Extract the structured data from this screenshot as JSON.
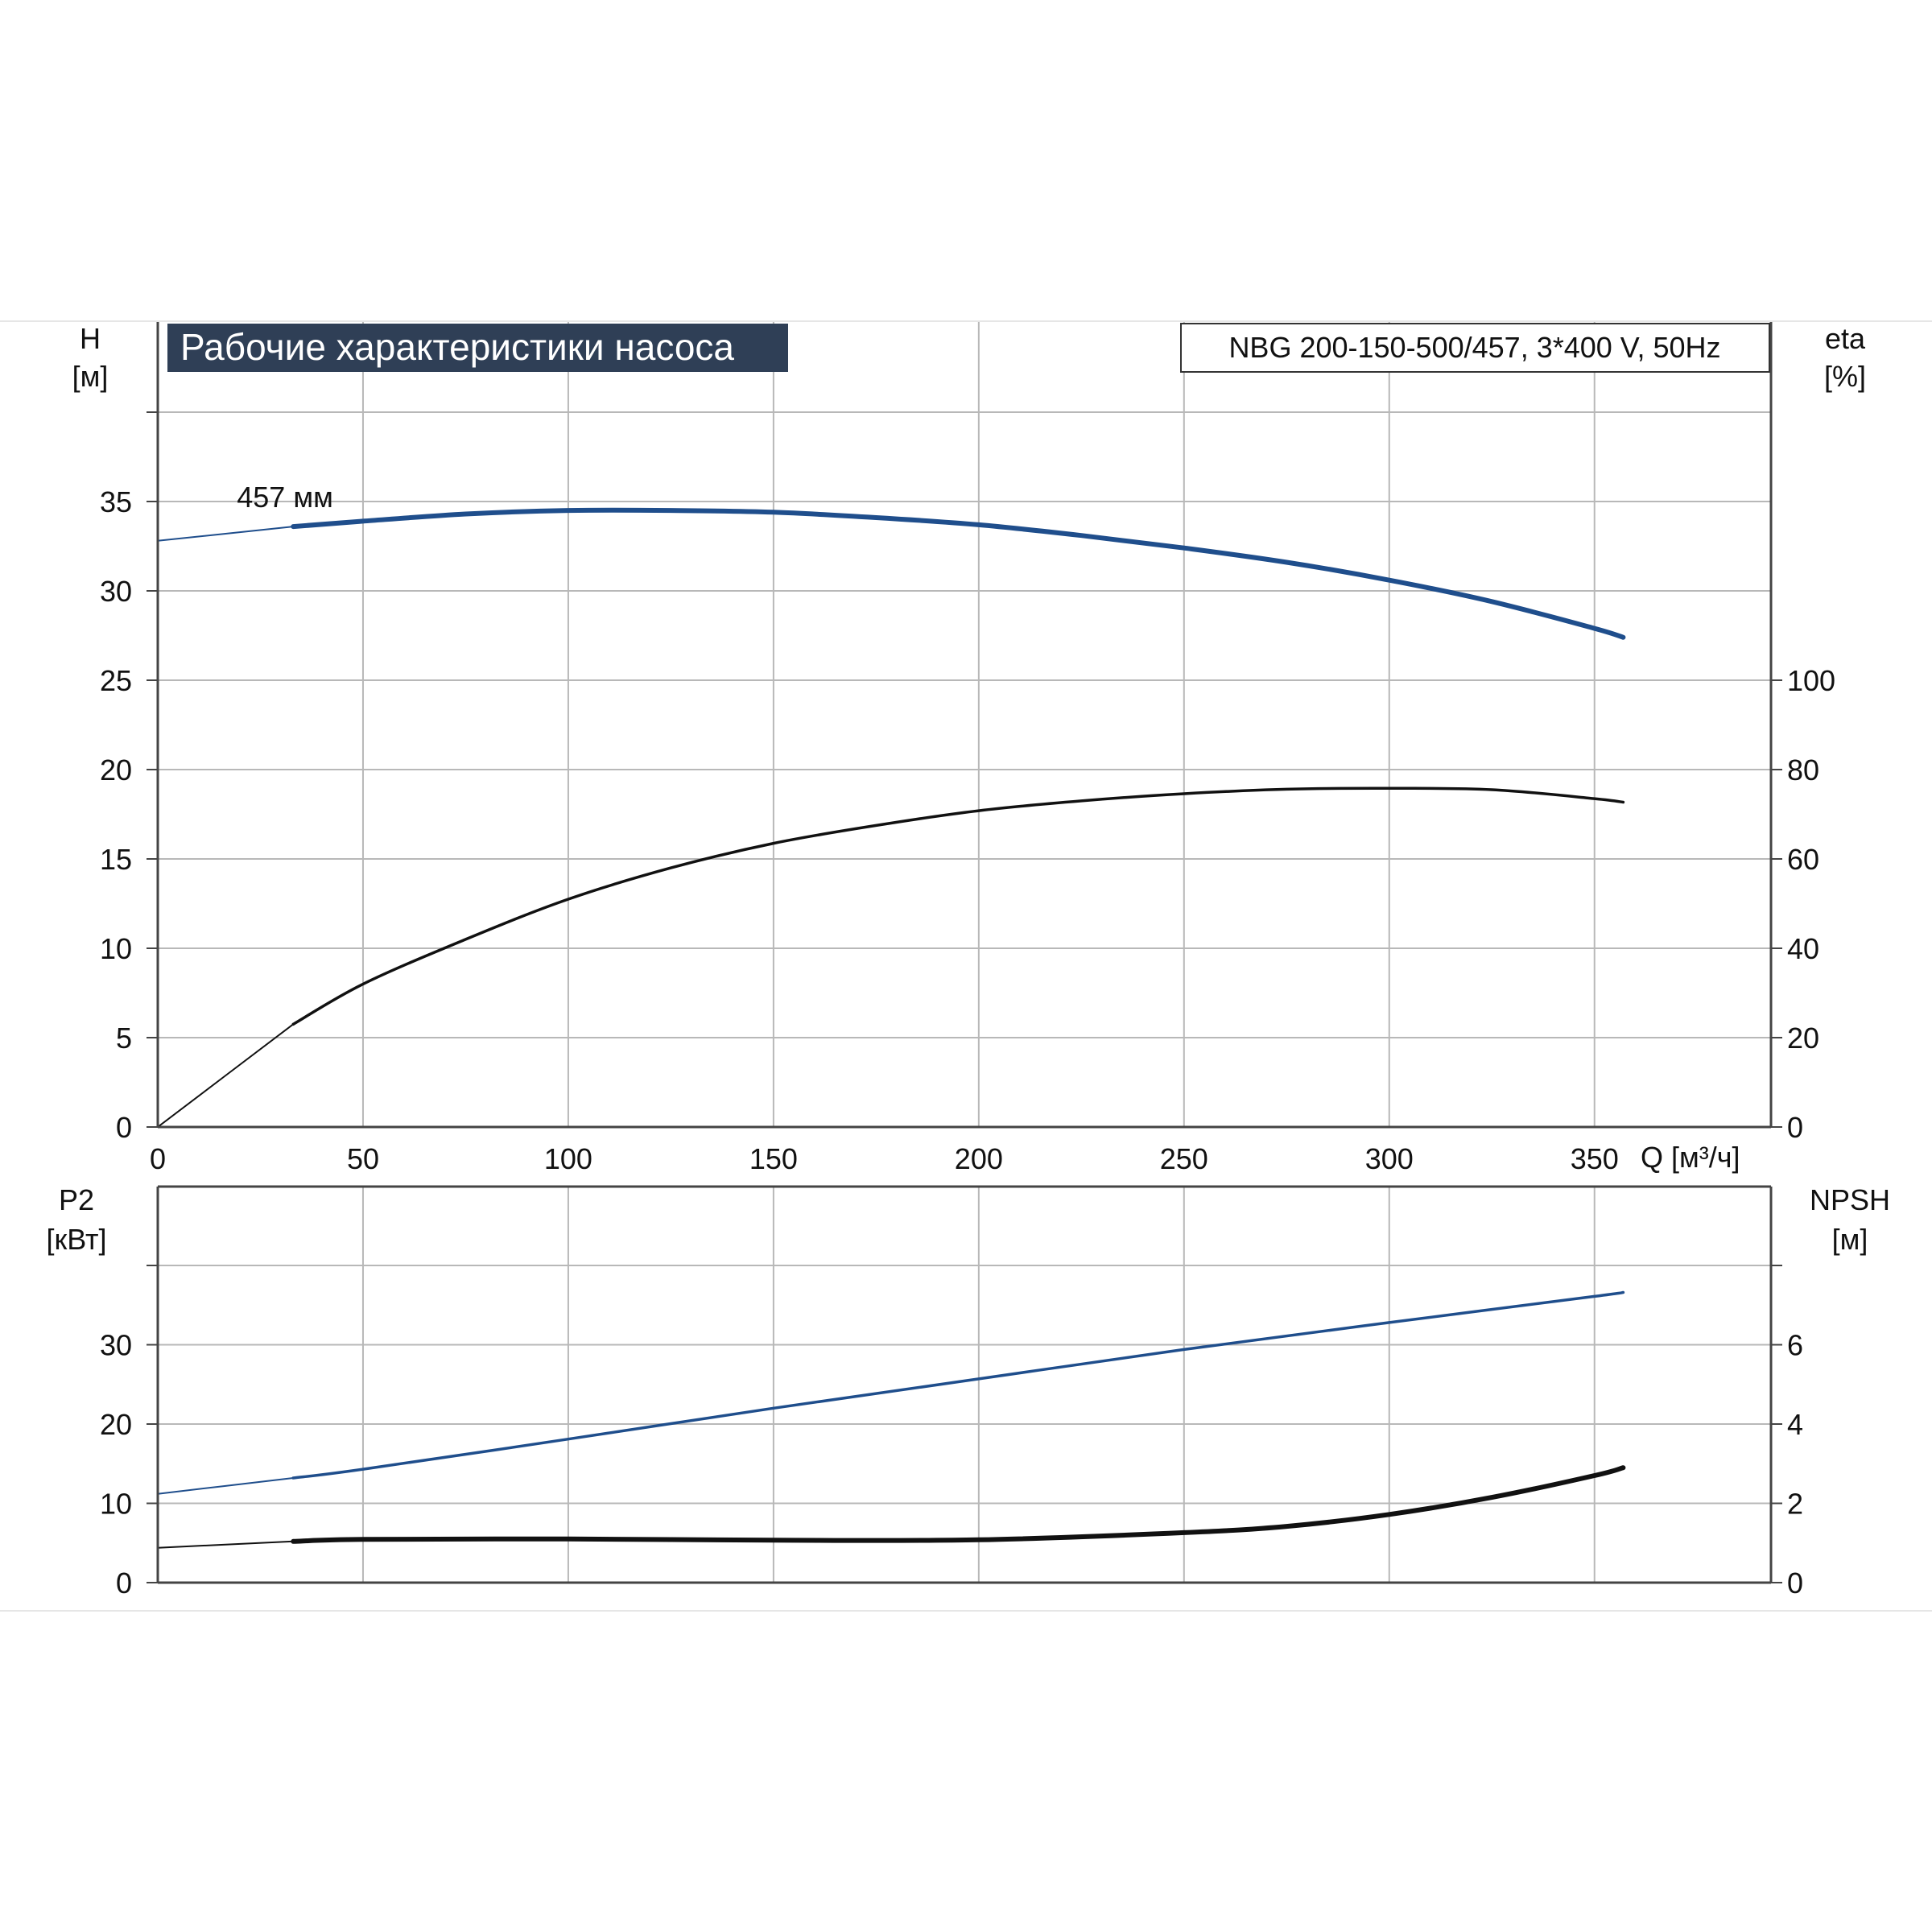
{
  "title": "Рабочие характеристики насоса",
  "model": "NBG 200-150-500/457, 3*400 V, 50Hz",
  "colors": {
    "blue": "#1f4e8c",
    "black": "#111111",
    "grid": "#b8b8b8",
    "title_bg": "#2f3f56"
  },
  "chart_data": [
    {
      "type": "line",
      "panel": "top",
      "xlabel": "Q [м³/ч]",
      "x_ticks": [
        "0",
        "50",
        "100",
        "150",
        "200",
        "250",
        "300",
        "350"
      ],
      "xlim": [
        0,
        393
      ],
      "left_axis": {
        "label_line1": "H",
        "label_line2": "[м]",
        "ylim": [
          0,
          40
        ],
        "ticks": [
          "0",
          "5",
          "10",
          "15",
          "20",
          "25",
          "30",
          "35"
        ]
      },
      "right_axis": {
        "label_line1": "eta",
        "label_line2": "[%]",
        "ylim": [
          0,
          160
        ],
        "ticks": [
          "0",
          "20",
          "40",
          "60",
          "80",
          "100"
        ]
      },
      "annotations": [
        {
          "text": "457 мм",
          "x": 33,
          "y": 34.5
        }
      ],
      "series": [
        {
          "axis": "left",
          "color": "#1f4e8c",
          "x": [
            0,
            33,
            50,
            75,
            100,
            125,
            150,
            175,
            200,
            225,
            250,
            275,
            300,
            325,
            350,
            357
          ],
          "y": [
            32.8,
            33.6,
            33.9,
            34.3,
            34.5,
            34.5,
            34.4,
            34.1,
            33.7,
            33.1,
            32.4,
            31.6,
            30.6,
            29.4,
            27.9,
            27.4
          ]
        },
        {
          "axis": "right",
          "color": "#111111",
          "x": [
            0,
            33,
            50,
            75,
            100,
            125,
            150,
            175,
            200,
            225,
            250,
            275,
            300,
            325,
            350,
            357
          ],
          "y": [
            0,
            23,
            32,
            42,
            51,
            58,
            63.5,
            67.5,
            70.8,
            73,
            74.6,
            75.6,
            75.8,
            75.5,
            73.5,
            72.7
          ]
        }
      ]
    },
    {
      "type": "line",
      "panel": "bottom",
      "xlim": [
        0,
        393
      ],
      "left_axis": {
        "label_line1": "P2",
        "label_line2": "[кВт]",
        "ylim": [
          0,
          40
        ],
        "ticks": [
          "0",
          "10",
          "20",
          "30"
        ]
      },
      "right_axis": {
        "label_line1": "NPSH",
        "label_line2": "[м]",
        "ylim": [
          0,
          8
        ],
        "ticks": [
          "0",
          "2",
          "4",
          "6"
        ]
      },
      "series": [
        {
          "axis": "left",
          "color": "#1f4e8c",
          "x": [
            0,
            33,
            50,
            100,
            150,
            200,
            250,
            300,
            350,
            357
          ],
          "y": [
            11.2,
            13.2,
            14.3,
            18.1,
            22.0,
            25.7,
            29.4,
            32.8,
            36.1,
            36.6
          ]
        },
        {
          "axis": "right",
          "color": "#111111",
          "x": [
            0,
            33,
            50,
            100,
            150,
            200,
            250,
            275,
            300,
            325,
            350,
            357
          ],
          "y": [
            0.88,
            1.04,
            1.09,
            1.1,
            1.07,
            1.08,
            1.26,
            1.42,
            1.72,
            2.15,
            2.7,
            2.9
          ]
        }
      ]
    }
  ]
}
